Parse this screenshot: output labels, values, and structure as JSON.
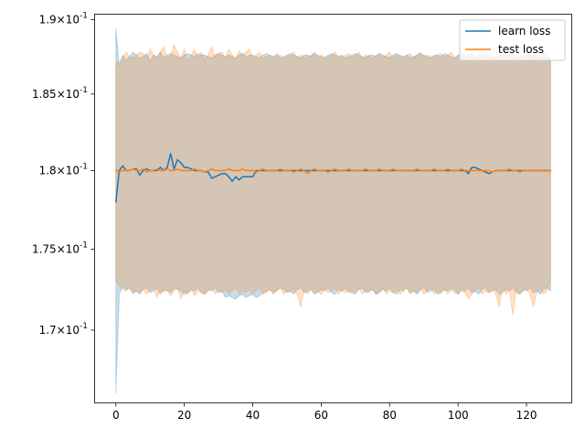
{
  "chart_data": {
    "type": "line",
    "title": "",
    "xlabel": "",
    "ylabel": "",
    "yscale": "log",
    "xlim": [
      -6.35,
      133.35
    ],
    "ylim": [
      0.1656,
      0.1904
    ],
    "xticks": [
      0,
      20,
      40,
      60,
      80,
      100,
      120
    ],
    "xtick_labels": [
      "0",
      "20",
      "40",
      "60",
      "80",
      "100",
      "120"
    ],
    "yticks": [
      0.17,
      0.175,
      0.18,
      0.185,
      0.19
    ],
    "ytick_labels": [
      [
        "1.7",
        "-1"
      ],
      [
        "1.75",
        "-1"
      ],
      [
        "1.8",
        "-1"
      ],
      [
        "1.85",
        "-1"
      ],
      [
        "1.9",
        "-1"
      ]
    ],
    "ytick_prefix": "×10",
    "grid": false,
    "legend_placement": "top-right",
    "series": [
      {
        "name": "learn loss",
        "color": "#1f77b4",
        "band_color": "#a6d3f7",
        "x_start": 0,
        "x_step": 1,
        "values": [
          0.178,
          0.18,
          0.1803,
          0.18,
          0.18,
          0.1801,
          0.1801,
          0.1797,
          0.18,
          0.1801,
          0.18,
          0.18,
          0.18,
          0.1802,
          0.18,
          0.1802,
          0.1811,
          0.1801,
          0.1807,
          0.1805,
          0.1802,
          0.1802,
          0.1801,
          0.18,
          0.18,
          0.18,
          0.1799,
          0.1799,
          0.1795,
          0.1796,
          0.1797,
          0.1798,
          0.1798,
          0.1796,
          0.1793,
          0.1796,
          0.1794,
          0.1796,
          0.1796,
          0.1796,
          0.1796,
          0.18,
          0.18,
          0.18,
          0.18,
          0.18,
          0.18,
          0.18,
          0.18,
          0.18,
          0.18,
          0.18,
          0.18,
          0.18,
          0.18,
          0.18,
          0.18,
          0.18,
          0.18,
          0.18,
          0.18,
          0.18,
          0.18,
          0.18,
          0.18,
          0.18,
          0.18,
          0.18,
          0.18,
          0.18,
          0.18,
          0.18,
          0.18,
          0.18,
          0.18,
          0.18,
          0.18,
          0.18,
          0.18,
          0.18,
          0.18,
          0.18,
          0.18,
          0.18,
          0.18,
          0.18,
          0.18,
          0.18,
          0.18,
          0.18,
          0.18,
          0.18,
          0.18,
          0.18,
          0.18,
          0.18,
          0.18,
          0.18,
          0.18,
          0.18,
          0.18,
          0.18,
          0.18,
          0.1798,
          0.1802,
          0.1802,
          0.1801,
          0.18,
          0.1799,
          0.1798,
          0.1799,
          0.18,
          0.18,
          0.18,
          0.18,
          0.18,
          0.18,
          0.18,
          0.18,
          0.18,
          0.18,
          0.18,
          0.18,
          0.18,
          0.18,
          0.18,
          0.18,
          0.18
        ],
        "upper": [
          0.1894,
          0.1868,
          0.1876,
          0.1872,
          0.1875,
          0.1878,
          0.1876,
          0.1874,
          0.1875,
          0.1877,
          0.1872,
          0.1876,
          0.1875,
          0.1878,
          0.1874,
          0.1876,
          0.1877,
          0.1876,
          0.1875,
          0.1874,
          0.1876,
          0.1877,
          0.1876,
          0.1875,
          0.1877,
          0.1876,
          0.1876,
          0.1875,
          0.1874,
          0.1876,
          0.1877,
          0.1876,
          0.1875,
          0.1876,
          0.1875,
          0.1874,
          0.1876,
          0.1877,
          0.1875,
          0.1876,
          0.1876,
          0.1875,
          0.1874,
          0.1876,
          0.1877,
          0.1876,
          0.1875,
          0.1876,
          0.1874,
          0.1875,
          0.1876,
          0.1877,
          0.1876,
          0.1875,
          0.1874,
          0.1876,
          0.1876,
          0.1875,
          0.1877,
          0.1876,
          0.1875,
          0.1874,
          0.1876,
          0.1877,
          0.1876,
          0.1875,
          0.1876,
          0.1874,
          0.1875,
          0.1876,
          0.1877,
          0.1876,
          0.1875,
          0.1874,
          0.1876,
          0.1876,
          0.1875,
          0.1877,
          0.1876,
          0.1875,
          0.1874,
          0.1876,
          0.1877,
          0.1876,
          0.1875,
          0.1876,
          0.1874,
          0.1875,
          0.1876,
          0.1877,
          0.1876,
          0.1875,
          0.1874,
          0.1876,
          0.1876,
          0.1875,
          0.1877,
          0.1876,
          0.1875,
          0.1874,
          0.1876,
          0.1877,
          0.1876,
          0.1875,
          0.1876,
          0.1874,
          0.1875,
          0.1876,
          0.1877,
          0.1876,
          0.1875,
          0.1874,
          0.1876,
          0.1876,
          0.1875,
          0.1877,
          0.1876,
          0.1875,
          0.1874,
          0.1876,
          0.1877,
          0.1876,
          0.1875,
          0.1876,
          0.1874,
          0.1875,
          0.1876,
          0.1874
        ],
        "lower": [
          0.1662,
          0.1722,
          0.1727,
          0.1725,
          0.1726,
          0.1723,
          0.1724,
          0.1722,
          0.1725,
          0.1726,
          0.1723,
          0.1724,
          0.1726,
          0.1722,
          0.1725,
          0.1724,
          0.1723,
          0.1726,
          0.1725,
          0.1724,
          0.1722,
          0.1723,
          0.1725,
          0.1724,
          0.1726,
          0.1723,
          0.1722,
          0.1725,
          0.1724,
          0.1726,
          0.1723,
          0.1724,
          0.172,
          0.1721,
          0.172,
          0.1719,
          0.1721,
          0.1722,
          0.172,
          0.1721,
          0.1722,
          0.172,
          0.1721,
          0.1723,
          0.1724,
          0.1725,
          0.1723,
          0.1724,
          0.1726,
          0.1725,
          0.1723,
          0.1724,
          0.1722,
          0.1725,
          0.1726,
          0.1723,
          0.1724,
          0.1725,
          0.1722,
          0.1723,
          0.1725,
          0.1724,
          0.1726,
          0.1723,
          0.1722,
          0.1725,
          0.1724,
          0.1726,
          0.1723,
          0.1724,
          0.1722,
          0.1725,
          0.1726,
          0.1723,
          0.1724,
          0.1725,
          0.1722,
          0.1723,
          0.1725,
          0.1724,
          0.1726,
          0.1723,
          0.1722,
          0.1725,
          0.1724,
          0.1726,
          0.1723,
          0.1724,
          0.1722,
          0.1725,
          0.1726,
          0.1723,
          0.1724,
          0.1725,
          0.1722,
          0.1723,
          0.1725,
          0.1724,
          0.1726,
          0.1723,
          0.1722,
          0.1725,
          0.1724,
          0.1726,
          0.1723,
          0.1724,
          0.1722,
          0.1725,
          0.1726,
          0.1723,
          0.1724,
          0.1725,
          0.1722,
          0.1723,
          0.1725,
          0.1724,
          0.1726,
          0.1723,
          0.1722,
          0.1725,
          0.1724,
          0.1726,
          0.1723,
          0.1724,
          0.1722,
          0.1725,
          0.1726,
          0.1724
        ]
      },
      {
        "name": "test loss",
        "color": "#ff7f0e",
        "band_color": "#ffd8b3",
        "x_start": 0,
        "x_step": 1,
        "values": [
          0.18,
          0.1799,
          0.18,
          0.18,
          0.18,
          0.1801,
          0.18,
          0.18,
          0.1801,
          0.1799,
          0.18,
          0.18,
          0.1801,
          0.18,
          0.18,
          0.1801,
          0.18,
          0.18,
          0.1801,
          0.18,
          0.18,
          0.18,
          0.18,
          0.1801,
          0.18,
          0.18,
          0.1799,
          0.18,
          0.1801,
          0.18,
          0.18,
          0.18,
          0.18,
          0.1801,
          0.18,
          0.18,
          0.18,
          0.1801,
          0.18,
          0.18,
          0.18,
          0.1799,
          0.18,
          0.1801,
          0.18,
          0.18,
          0.18,
          0.18,
          0.1801,
          0.18,
          0.18,
          0.18,
          0.1799,
          0.18,
          0.1801,
          0.18,
          0.1798,
          0.18,
          0.1801,
          0.18,
          0.18,
          0.18,
          0.1799,
          0.18,
          0.1801,
          0.18,
          0.18,
          0.18,
          0.1801,
          0.18,
          0.18,
          0.18,
          0.18,
          0.1801,
          0.18,
          0.18,
          0.18,
          0.1801,
          0.18,
          0.18,
          0.18,
          0.1801,
          0.18,
          0.18,
          0.18,
          0.18,
          0.18,
          0.18,
          0.1801,
          0.18,
          0.18,
          0.18,
          0.18,
          0.1801,
          0.18,
          0.18,
          0.18,
          0.1801,
          0.18,
          0.18,
          0.18,
          0.1801,
          0.18,
          0.18,
          0.18,
          0.18,
          0.18,
          0.18,
          0.18,
          0.18,
          0.1799,
          0.18,
          0.18,
          0.18,
          0.18,
          0.1801,
          0.18,
          0.18,
          0.1799,
          0.18,
          0.18,
          0.18,
          0.18,
          0.18,
          0.18,
          0.18,
          0.18,
          0.18
        ],
        "upper": [
          0.187,
          0.1872,
          0.1874,
          0.1878,
          0.1875,
          0.1874,
          0.1876,
          0.1878,
          0.1877,
          0.1874,
          0.188,
          0.1876,
          0.1874,
          0.1878,
          0.1882,
          0.1874,
          0.1876,
          0.1883,
          0.1878,
          0.1874,
          0.188,
          0.1872,
          0.1876,
          0.188,
          0.1874,
          0.1878,
          0.1873,
          0.1876,
          0.1882,
          0.1875,
          0.1877,
          0.1878,
          0.1874,
          0.188,
          0.1876,
          0.1874,
          0.1879,
          0.1876,
          0.1878,
          0.188,
          0.1874,
          0.1876,
          0.1878,
          0.1874,
          0.1875,
          0.1876,
          0.1874,
          0.1877,
          0.1876,
          0.1874,
          0.1875,
          0.1876,
          0.1878,
          0.1874,
          0.1876,
          0.1875,
          0.1874,
          0.1876,
          0.1878,
          0.1874,
          0.1876,
          0.1875,
          0.1874,
          0.1876,
          0.1878,
          0.1875,
          0.1874,
          0.1876,
          0.1877,
          0.1874,
          0.1876,
          0.1878,
          0.1874,
          0.1876,
          0.1875,
          0.1874,
          0.1876,
          0.1877,
          0.1874,
          0.1876,
          0.1878,
          0.1874,
          0.1876,
          0.1875,
          0.1874,
          0.1876,
          0.1877,
          0.1874,
          0.1876,
          0.1878,
          0.1874,
          0.1876,
          0.1875,
          0.1874,
          0.1876,
          0.1877,
          0.1874,
          0.1876,
          0.1878,
          0.1874,
          0.1876,
          0.1875,
          0.1874,
          0.1876,
          0.1877,
          0.1874,
          0.1876,
          0.1878,
          0.1874,
          0.1876,
          0.1875,
          0.1874,
          0.1876,
          0.1877,
          0.1874,
          0.1876,
          0.1878,
          0.1874,
          0.1876,
          0.1875,
          0.1874,
          0.1876,
          0.1877,
          0.1874,
          0.1876,
          0.1878,
          0.1874,
          0.1872
        ],
        "lower": [
          0.173,
          0.1727,
          0.1725,
          0.1724,
          0.1726,
          0.1722,
          0.1724,
          0.1723,
          0.1725,
          0.1722,
          0.1724,
          0.1726,
          0.172,
          0.1724,
          0.1723,
          0.1725,
          0.1721,
          0.1724,
          0.1726,
          0.1719,
          0.1724,
          0.1722,
          0.1725,
          0.1721,
          0.1724,
          0.1723,
          0.1722,
          0.1724,
          0.1726,
          0.1722,
          0.1724,
          0.1723,
          0.1725,
          0.1722,
          0.1724,
          0.1726,
          0.1722,
          0.1724,
          0.1723,
          0.1725,
          0.1722,
          0.1724,
          0.1726,
          0.1722,
          0.1723,
          0.1725,
          0.1722,
          0.1724,
          0.1726,
          0.1722,
          0.1724,
          0.1723,
          0.1725,
          0.1722,
          0.1714,
          0.1724,
          0.1722,
          0.1725,
          0.1723,
          0.1724,
          0.1722,
          0.1725,
          0.1723,
          0.1724,
          0.1726,
          0.1722,
          0.1724,
          0.1723,
          0.1725,
          0.1722,
          0.1724,
          0.1726,
          0.1722,
          0.1724,
          0.1723,
          0.1725,
          0.1722,
          0.1724,
          0.1726,
          0.1722,
          0.1724,
          0.1723,
          0.1725,
          0.1722,
          0.1724,
          0.1726,
          0.1722,
          0.1724,
          0.1723,
          0.1725,
          0.1722,
          0.1724,
          0.1726,
          0.1722,
          0.1724,
          0.1723,
          0.1725,
          0.1722,
          0.1724,
          0.1726,
          0.1722,
          0.1724,
          0.1723,
          0.1719,
          0.1722,
          0.1724,
          0.1726,
          0.1722,
          0.1724,
          0.1723,
          0.1725,
          0.1722,
          0.1714,
          0.1726,
          0.1722,
          0.1724,
          0.1709,
          0.1725,
          0.1722,
          0.1724,
          0.1726,
          0.1722,
          0.1714,
          0.1723,
          0.1725,
          0.1722,
          0.1724,
          0.173
        ]
      }
    ]
  }
}
